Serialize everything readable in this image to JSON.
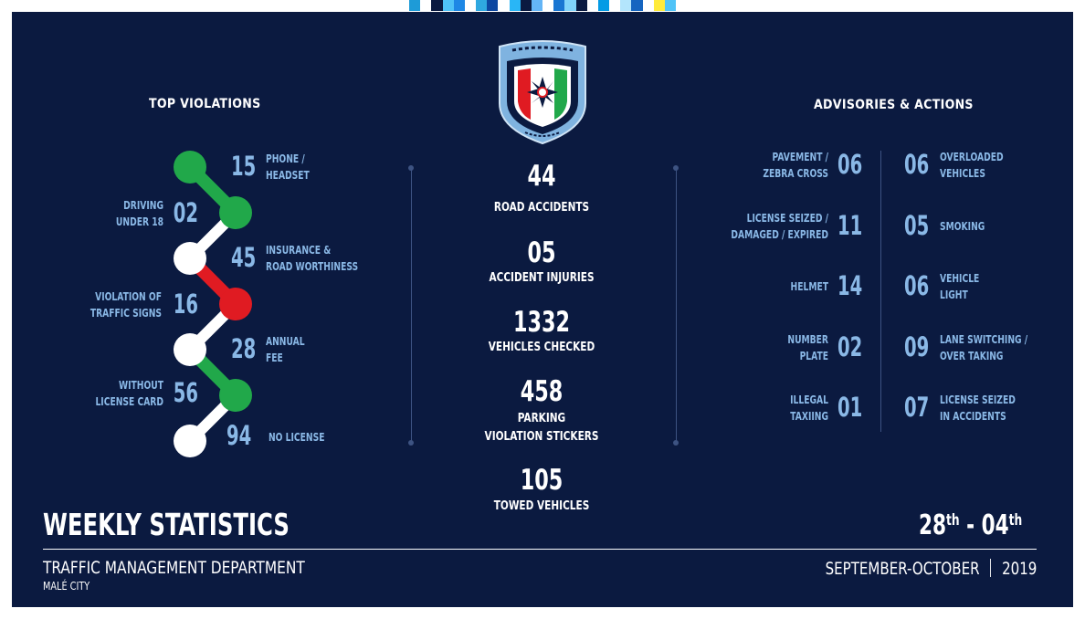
{
  "header_stripe_colors": [
    "#1e9bd7",
    "#ffffff",
    "#0b1a40",
    "#4fc3f7",
    "#1e88e5",
    "#ffffff",
    "#2fa8e0",
    "#0d47a1",
    "#ffffff",
    "#29b6f6",
    "#0b1a40",
    "#64b5f6",
    "#ffffff",
    "#1976d2",
    "#81d4fa",
    "#0b1a40",
    "#ffffff",
    "#039be5",
    "#ffffff",
    "#b3e5fc",
    "#1565c0",
    "#ffffff",
    "#ffeb3b",
    "#4fc3f7"
  ],
  "colors": {
    "background": "#0b1a40",
    "accent": "#8ab8e6",
    "green": "#21a84a",
    "red": "#e01b22",
    "white": "#ffffff"
  },
  "emblem": {
    "icon": "police-emblem-icon"
  },
  "top_violations": {
    "heading": "TOP VIOLATIONS",
    "items": [
      {
        "count": "15",
        "label": [
          "PHONE /",
          "HEADSET"
        ]
      },
      {
        "count": "02",
        "label": [
          "DRIVING",
          "UNDER 18"
        ]
      },
      {
        "count": "45",
        "label": [
          "INSURANCE &",
          "ROAD WORTHINESS"
        ]
      },
      {
        "count": "16",
        "label": [
          "VIOLATION OF",
          "TRAFFIC SIGNS"
        ]
      },
      {
        "count": "28",
        "label": [
          "ANNUAL",
          "FEE"
        ]
      },
      {
        "count": "56",
        "label": [
          "WITHOUT",
          "LICENSE CARD"
        ]
      },
      {
        "count": "94",
        "label": [
          "NO LICENSE"
        ]
      }
    ]
  },
  "center_stats": [
    {
      "value": "44",
      "label": [
        "ROAD ACCIDENTS"
      ]
    },
    {
      "value": "05",
      "label": [
        "ACCIDENT INJURIES"
      ]
    },
    {
      "value": "1332",
      "label": [
        "VEHICLES CHECKED"
      ]
    },
    {
      "value": "458",
      "label": [
        "PARKING",
        "VIOLATION STICKERS"
      ]
    },
    {
      "value": "105",
      "label": [
        "TOWED VEHICLES"
      ]
    }
  ],
  "advisories": {
    "heading": "ADVISORIES & ACTIONS",
    "left_items": [
      {
        "count": "06",
        "label": [
          "PAVEMENT /",
          "ZEBRA CROSS"
        ]
      },
      {
        "count": "11",
        "label": [
          "LICENSE SEIZED /",
          "DAMAGED / EXPIRED"
        ]
      },
      {
        "count": "14",
        "label": [
          "HELMET"
        ]
      },
      {
        "count": "02",
        "label": [
          "NUMBER",
          "PLATE"
        ]
      },
      {
        "count": "01",
        "label": [
          "ILLEGAL",
          "TAXIING"
        ]
      }
    ],
    "right_items": [
      {
        "count": "06",
        "label": [
          "OVERLOADED",
          "VEHICLES"
        ]
      },
      {
        "count": "05",
        "label": [
          "SMOKING"
        ]
      },
      {
        "count": "06",
        "label": [
          "VEHICLE",
          "LIGHT"
        ]
      },
      {
        "count": "09",
        "label": [
          "LANE SWITCHING /",
          "OVER TAKING"
        ]
      },
      {
        "count": "07",
        "label": [
          "LICENSE SEIZED",
          "IN ACCIDENTS"
        ]
      }
    ]
  },
  "footer": {
    "title": "WEEKLY STATISTICS",
    "department": "TRAFFIC MANAGEMENT DEPARTMENT",
    "city": "MALÉ CITY",
    "date_start": "28",
    "date_start_suffix": "th",
    "date_separator": "-",
    "date_end": "04",
    "date_end_suffix": "th",
    "months": "SEPTEMBER-OCTOBER",
    "year": "2019"
  }
}
